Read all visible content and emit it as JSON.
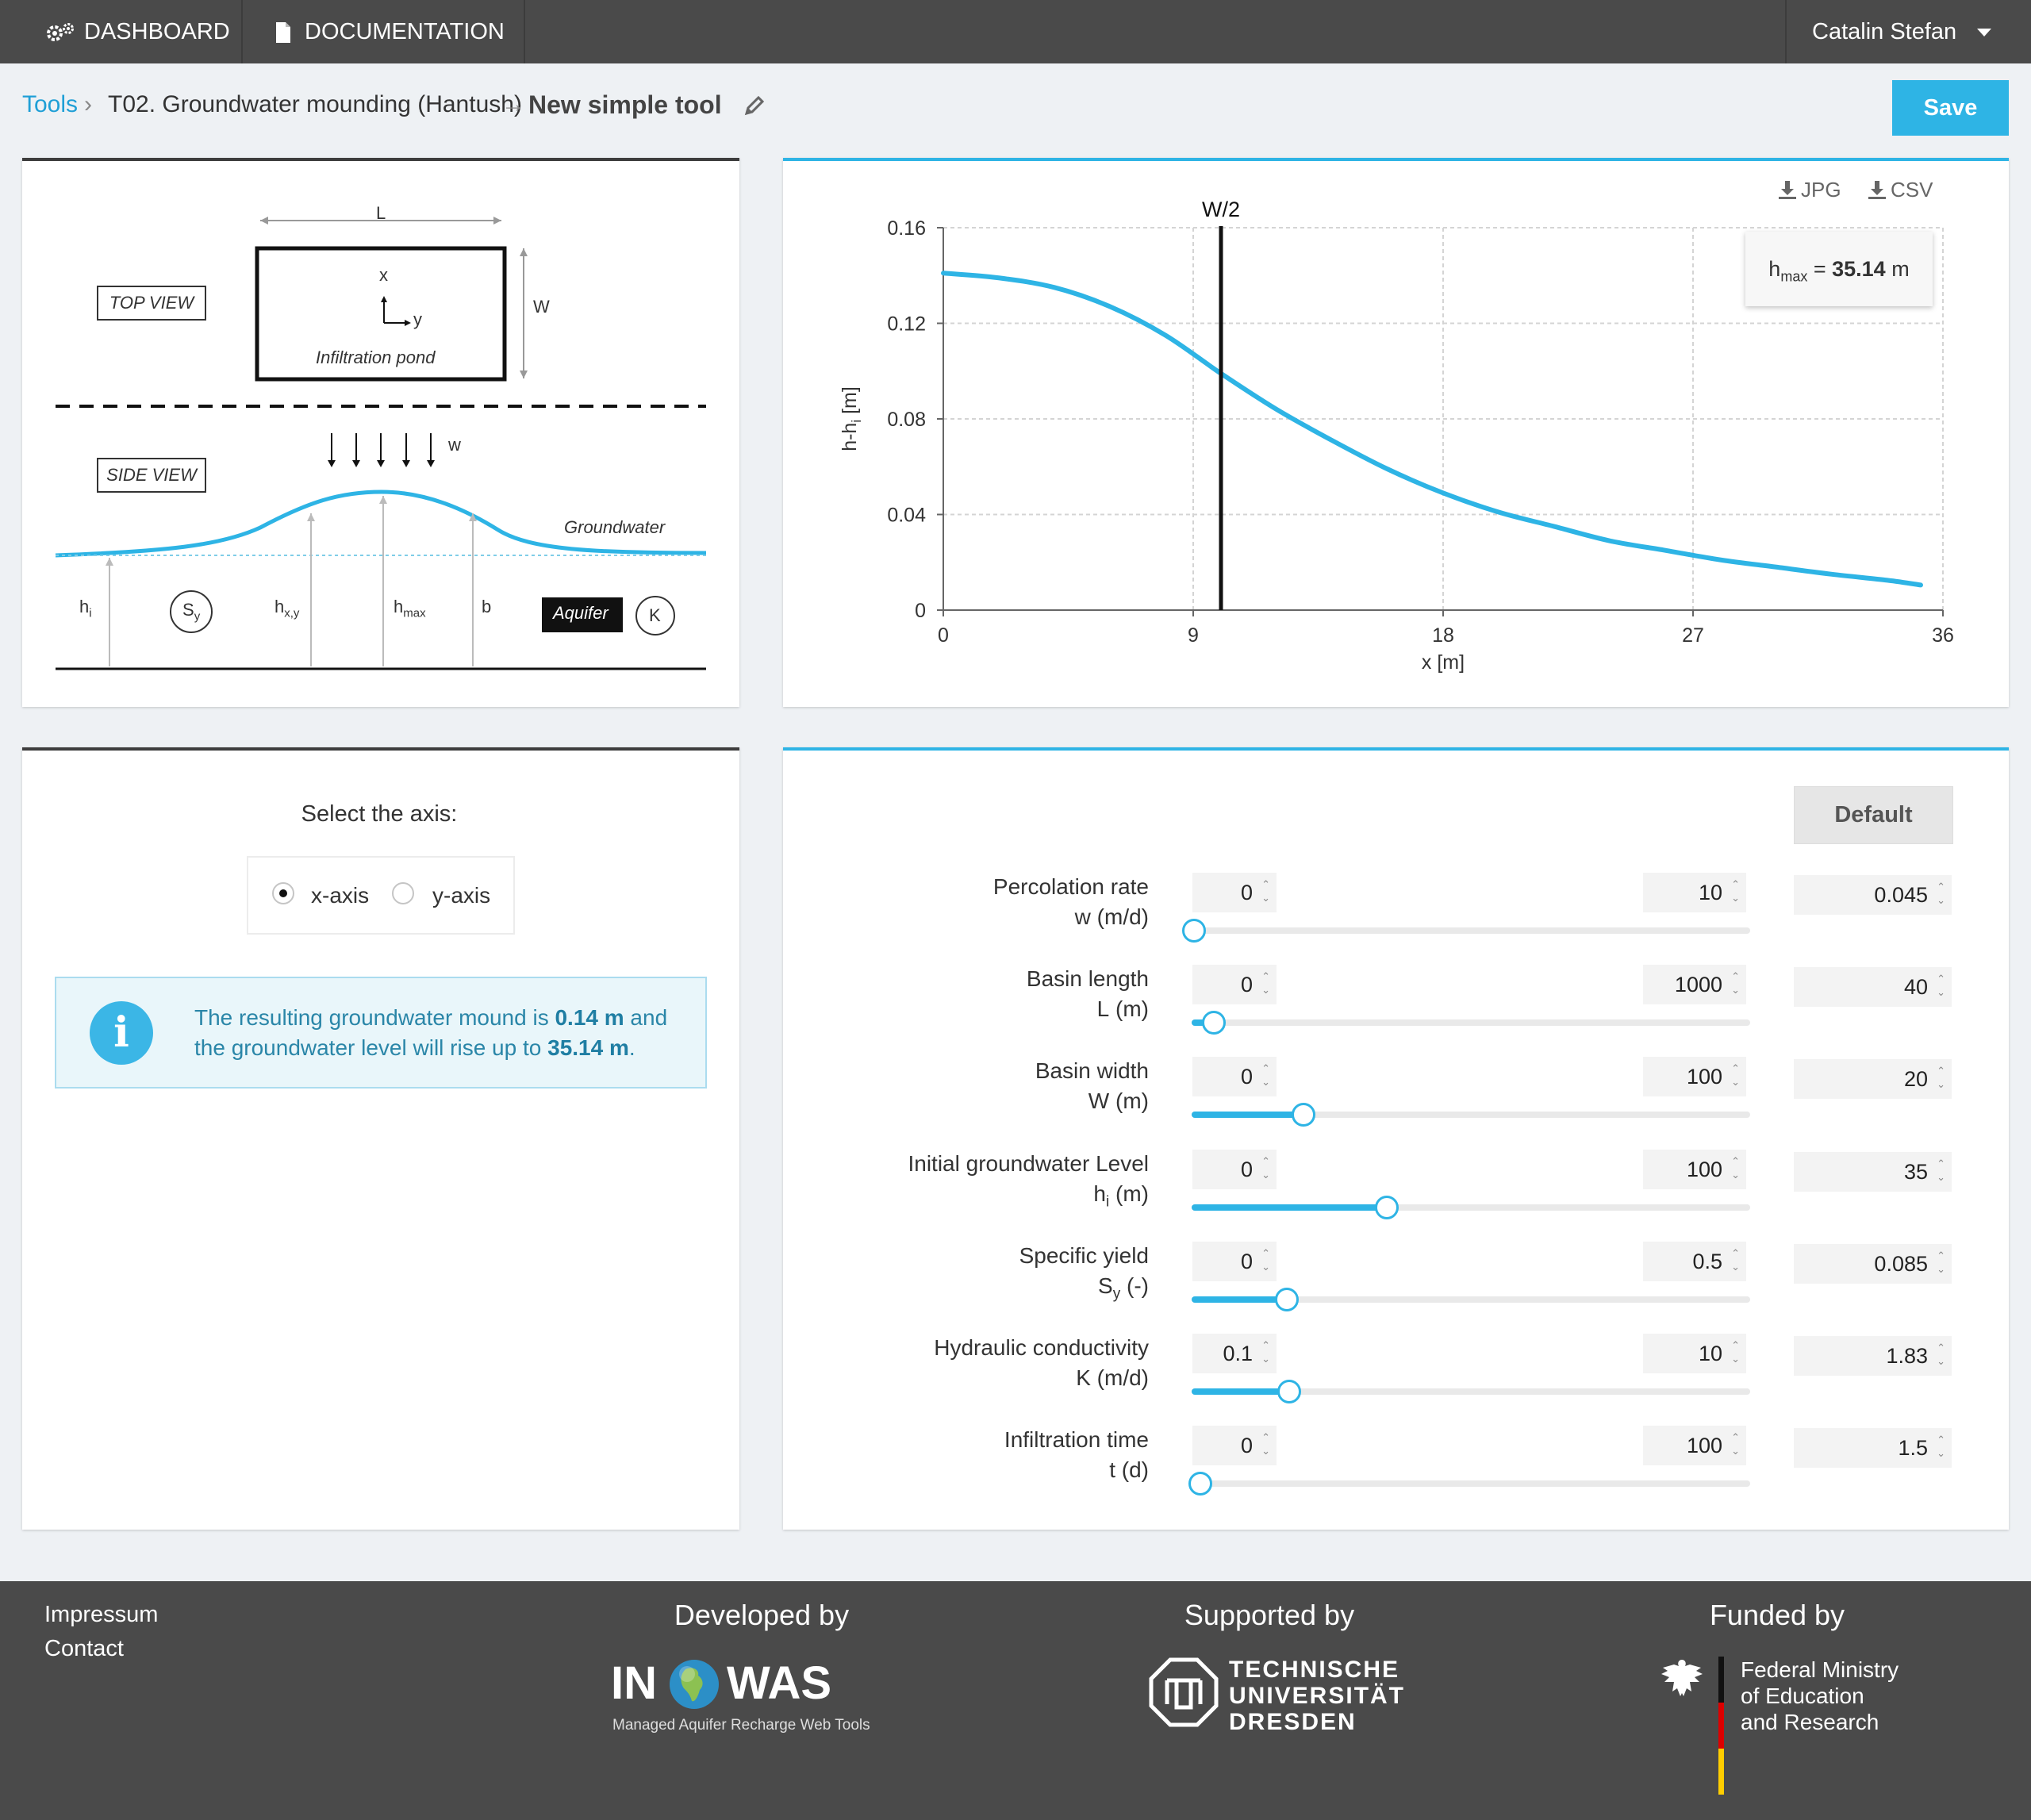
{
  "nav": {
    "dashboard": "DASHBOARD",
    "documentation": "DOCUMENTATION",
    "user": "Catalin Stefan"
  },
  "breadcrumb": {
    "tools": "Tools",
    "tool_name": "T02. Groundwater mounding (Hantush)",
    "current": "New simple tool",
    "save": "Save"
  },
  "diagram": {
    "top_view": "TOP VIEW",
    "side_view": "SIDE VIEW",
    "L": "L",
    "W": "W",
    "x": "x",
    "y": "y",
    "pond": "Infiltration pond",
    "w": "w",
    "groundwater": "Groundwater",
    "h_i": "h",
    "h_i_sub": "i",
    "S_y": "S",
    "S_y_sub": "y",
    "h_xy": "h",
    "h_xy_sub": "x,y",
    "h_max": "h",
    "h_max_sub": "max",
    "b": "b",
    "aquifer": "Aquifer",
    "K": "K"
  },
  "chart": {
    "jpg": "JPG",
    "csv": "CSV",
    "hmax_label": "h",
    "hmax_sub": "max",
    "hmax_eq": " = ",
    "hmax_value": "35.14",
    "hmax_unit": " m",
    "marker_label": "W/2"
  },
  "chart_data": {
    "type": "line",
    "xlabel": "x [m]",
    "ylabel": "h-h",
    "ylabel_sub": "i",
    "ylabel_unit": " [m]",
    "x_ticks": [
      "0",
      "9",
      "18",
      "27",
      "36"
    ],
    "y_ticks": [
      "0",
      "0.04",
      "0.08",
      "0.12",
      "0.16"
    ],
    "xlim": [
      0,
      36
    ],
    "ylim": [
      0,
      0.16
    ],
    "grid": true,
    "marker_x": 10,
    "series": [
      {
        "x": [
          0,
          2,
          4,
          6,
          8,
          10,
          12,
          14,
          16,
          18,
          20,
          22,
          24,
          26,
          28,
          30,
          32,
          34,
          35.2
        ],
        "y": [
          0.141,
          0.139,
          0.135,
          0.127,
          0.115,
          0.099,
          0.084,
          0.071,
          0.059,
          0.049,
          0.041,
          0.035,
          0.029,
          0.025,
          0.021,
          0.018,
          0.015,
          0.0125,
          0.0105
        ]
      }
    ]
  },
  "axis_select": {
    "title": "Select the axis:",
    "x_axis": "x-axis",
    "y_axis": "y-axis",
    "selected": "x-axis"
  },
  "result": {
    "text1": "The resulting groundwater mound is ",
    "mound": "0.14 m",
    "text2": " and the groundwater level will rise up to ",
    "level": "35.14 m",
    "text3": "."
  },
  "params": {
    "default_label": "Default",
    "items": [
      {
        "name": "Percolation rate",
        "symbol": "w",
        "sub": "",
        "unit": " (m/d)",
        "min": "0",
        "max": "10",
        "value": "0.045",
        "fraction": 0.0045
      },
      {
        "name": "Basin length",
        "symbol": "L",
        "sub": "",
        "unit": " (m)",
        "min": "0",
        "max": "1000",
        "value": "40",
        "fraction": 0.04
      },
      {
        "name": "Basin width",
        "symbol": "W",
        "sub": "",
        "unit": " (m)",
        "min": "0",
        "max": "100",
        "value": "20",
        "fraction": 0.2
      },
      {
        "name": "Initial groundwater Level",
        "symbol": "h",
        "sub": "i",
        "unit": " (m)",
        "min": "0",
        "max": "100",
        "value": "35",
        "fraction": 0.35
      },
      {
        "name": "Specific yield",
        "symbol": "S",
        "sub": "y",
        "unit": " (-)",
        "min": "0",
        "max": "0.5",
        "value": "0.085",
        "fraction": 0.17
      },
      {
        "name": "Hydraulic conductivity",
        "symbol": "K",
        "sub": "",
        "unit": " (m/d)",
        "min": "0.1",
        "max": "10",
        "value": "1.83",
        "fraction": 0.175
      },
      {
        "name": "Infiltration time",
        "symbol": "t",
        "sub": "",
        "unit": " (d)",
        "min": "0",
        "max": "100",
        "value": "1.5",
        "fraction": 0.015
      }
    ]
  },
  "footer": {
    "impressum": "Impressum",
    "contact": "Contact",
    "developed_by": "Developed by",
    "supported_by": "Supported by",
    "funded_by": "Funded by",
    "inowas_in": "IN",
    "inowas_was": "WAS",
    "inowas_tagline": "Managed Aquifer Recharge Web Tools",
    "tud_line1": "TECHNISCHE",
    "tud_line2": "UNIVERSITÄT",
    "tud_line3": "DRESDEN",
    "bmbf_line1": "Federal Ministry",
    "bmbf_line2": "of Education",
    "bmbf_line3": "and Research"
  },
  "colors": {
    "accent": "#2eb4e5",
    "nav_bg": "#4a4a4a",
    "page_bg": "#eef1f4",
    "link": "#1f9fd6"
  }
}
